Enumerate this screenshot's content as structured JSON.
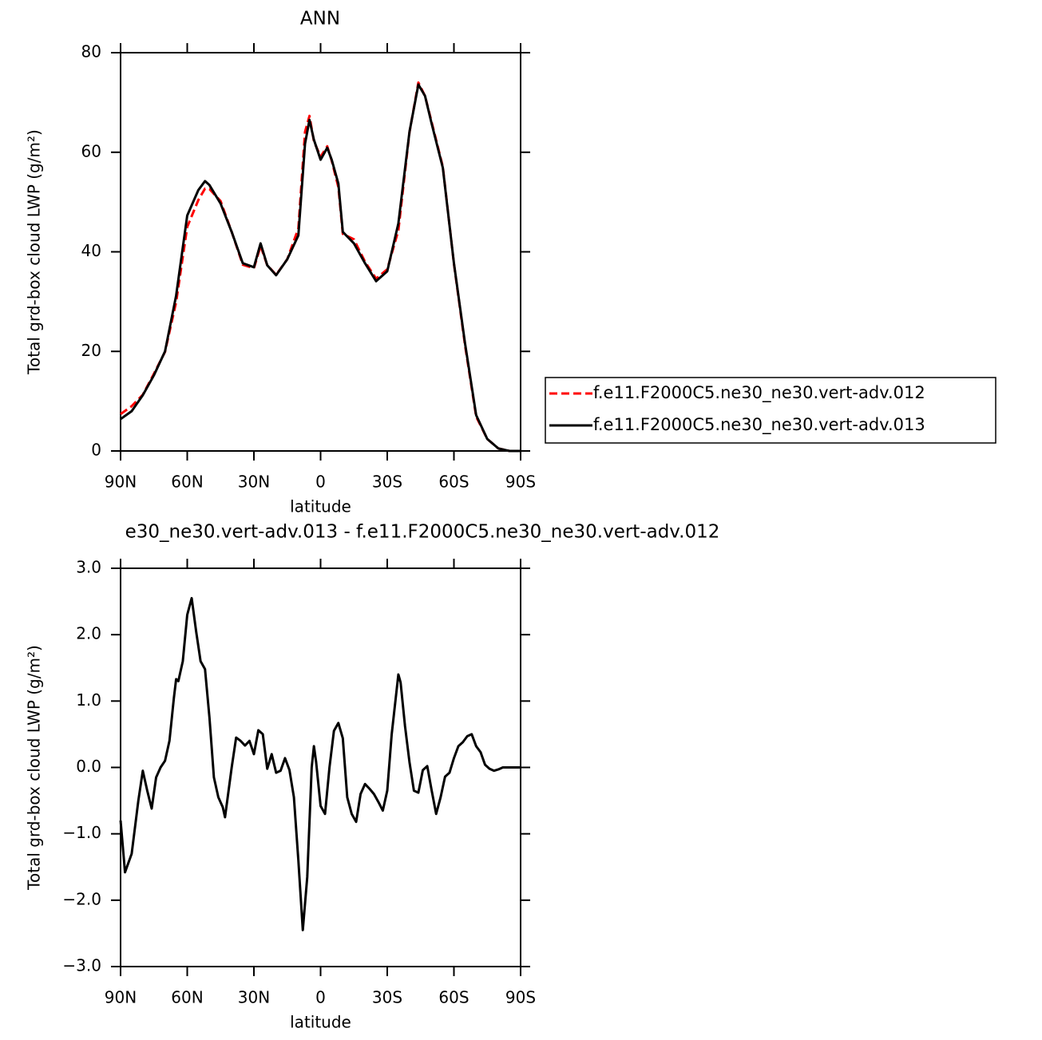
{
  "chart_data": [
    {
      "type": "line",
      "title": "ANN",
      "xlabel": "latitude",
      "ylabel": "Total grd-box cloud LWP (g/m²)",
      "x": [
        90,
        85,
        80,
        75,
        70,
        65,
        60,
        55,
        52,
        50,
        45,
        40,
        35,
        30,
        27,
        24,
        20,
        15,
        10,
        7,
        5,
        3,
        0,
        -3,
        -5,
        -8,
        -10,
        -15,
        -20,
        -25,
        -30,
        -35,
        -40,
        -44,
        -47,
        -50,
        -55,
        -60,
        -65,
        -70,
        -75,
        -80,
        -85,
        -90
      ],
      "xlim": [
        90,
        -90
      ],
      "xticks": [
        {
          "value": 90,
          "label": "90N"
        },
        {
          "value": 60,
          "label": "60N"
        },
        {
          "value": 30,
          "label": "30N"
        },
        0,
        {
          "value": -30,
          "label": "30S"
        },
        {
          "value": -60,
          "label": "60S"
        },
        {
          "value": -90,
          "label": "90S"
        }
      ],
      "ylim": [
        0,
        80
      ],
      "yticks": [
        0,
        20,
        40,
        60,
        80
      ],
      "series": [
        {
          "name": "f.e11.F2000C5.ne30_ne30.vert-adv.012",
          "color": "#ff0000",
          "dash": true,
          "values": [
            7.4,
            9.0,
            11.3,
            15.5,
            19.9,
            29.9,
            45,
            50.4,
            52.7,
            52.6,
            50.2,
            44,
            37.4,
            36.7,
            41.2,
            37.3,
            35.4,
            38.5,
            44.7,
            64.1,
            67.3,
            62.2,
            59.1,
            61.2,
            58.3,
            53,
            43.6,
            42.5,
            38,
            34.6,
            36.5,
            44.3,
            64,
            74,
            71.3,
            66,
            57.1,
            37.6,
            21.2,
            6.9,
            2.4,
            0.5,
            0,
            0
          ]
        },
        {
          "name": "f.e11.F2000C5.ne30_ne30.vert-adv.013",
          "color": "#000000",
          "dash": false,
          "values": [
            6.4,
            8,
            11.2,
            15.2,
            20,
            31.2,
            47.3,
            52.4,
            54.2,
            53.4,
            49.7,
            44,
            37.7,
            36.9,
            41.7,
            37.3,
            35.3,
            38.5,
            43.3,
            61.7,
            66.5,
            62.5,
            58.5,
            60.9,
            58.5,
            53.7,
            44,
            41.7,
            37.7,
            34.1,
            36.1,
            45.7,
            64.1,
            73.6,
            71.3,
            65.7,
            56.9,
            37.7,
            21.6,
            7.2,
            2.4,
            0.5,
            0,
            0
          ]
        }
      ]
    },
    {
      "type": "line",
      "title": "e30_ne30.vert-adv.013 - f.e11.F2000C5.ne30_ne30.vert-adv.012",
      "xlabel": "latitude",
      "ylabel": "Total grd-box cloud LWP (g/m²)",
      "x": [
        90,
        88,
        85,
        82,
        80,
        78,
        76,
        74,
        72,
        70,
        68,
        66,
        65,
        64,
        62,
        60,
        58,
        56,
        54,
        52,
        50,
        48,
        46,
        44,
        43,
        40,
        38,
        36,
        34,
        32,
        30,
        28,
        26,
        24,
        22,
        20,
        18,
        16,
        14,
        12,
        10,
        8,
        6,
        4,
        3,
        2,
        0,
        -2,
        -4,
        -6,
        -8,
        -10,
        -12,
        -14,
        -16,
        -18,
        -20,
        -22,
        -24,
        -26,
        -28,
        -30,
        -32,
        -34,
        -35,
        -36,
        -38,
        -40,
        -42,
        -44,
        -46,
        -48,
        -50,
        -52,
        -54,
        -56,
        -58,
        -60,
        -62,
        -64,
        -66,
        -68,
        -70,
        -72,
        -74,
        -76,
        -78,
        -80,
        -82,
        -90
      ],
      "xlim": [
        90,
        -90
      ],
      "xticks": [
        {
          "value": 90,
          "label": "90N"
        },
        {
          "value": 60,
          "label": "60N"
        },
        {
          "value": 30,
          "label": "30N"
        },
        0,
        {
          "value": -30,
          "label": "30S"
        },
        {
          "value": -60,
          "label": "60S"
        },
        {
          "value": -90,
          "label": "90S"
        }
      ],
      "ylim": [
        -3,
        3
      ],
      "yticks": [
        {
          "value": -3,
          "label": "−3.0"
        },
        {
          "value": -2,
          "label": "−2.0"
        },
        {
          "value": -1,
          "label": "−1.0"
        },
        {
          "value": 0,
          "label": "0.0"
        },
        {
          "value": 1,
          "label": "1.0"
        },
        {
          "value": 2,
          "label": "2.0"
        },
        {
          "value": 3,
          "label": "3.0"
        }
      ],
      "color": "#000000",
      "values": [
        -0.8,
        -1.58,
        -1.3,
        -0.5,
        -0.05,
        -0.35,
        -0.62,
        -0.15,
        0,
        0.1,
        0.4,
        1.05,
        1.33,
        1.3,
        1.6,
        2.3,
        2.55,
        2.05,
        1.6,
        1.48,
        0.75,
        -0.15,
        -0.45,
        -0.6,
        -0.75,
        0,
        0.45,
        0.4,
        0.33,
        0.4,
        0.2,
        0.56,
        0.5,
        -0.02,
        0.2,
        -0.08,
        -0.05,
        0.14,
        -0.04,
        -0.45,
        -1.4,
        -2.45,
        -1.65,
        0,
        0.32,
        0.08,
        -0.58,
        -0.7,
        0,
        0.55,
        0.67,
        0.44,
        -0.45,
        -0.7,
        -0.82,
        -0.4,
        -0.25,
        -0.32,
        -0.4,
        -0.52,
        -0.65,
        -0.35,
        0.5,
        1.1,
        1.4,
        1.28,
        0.62,
        0.08,
        -0.35,
        -0.38,
        -0.04,
        0.02,
        -0.35,
        -0.7,
        -0.45,
        -0.14,
        -0.08,
        0.14,
        0.32,
        0.38,
        0.47,
        0.5,
        0.32,
        0.23,
        0.04,
        -0.02,
        -0.05,
        -0.03,
        0,
        0
      ]
    }
  ]
}
